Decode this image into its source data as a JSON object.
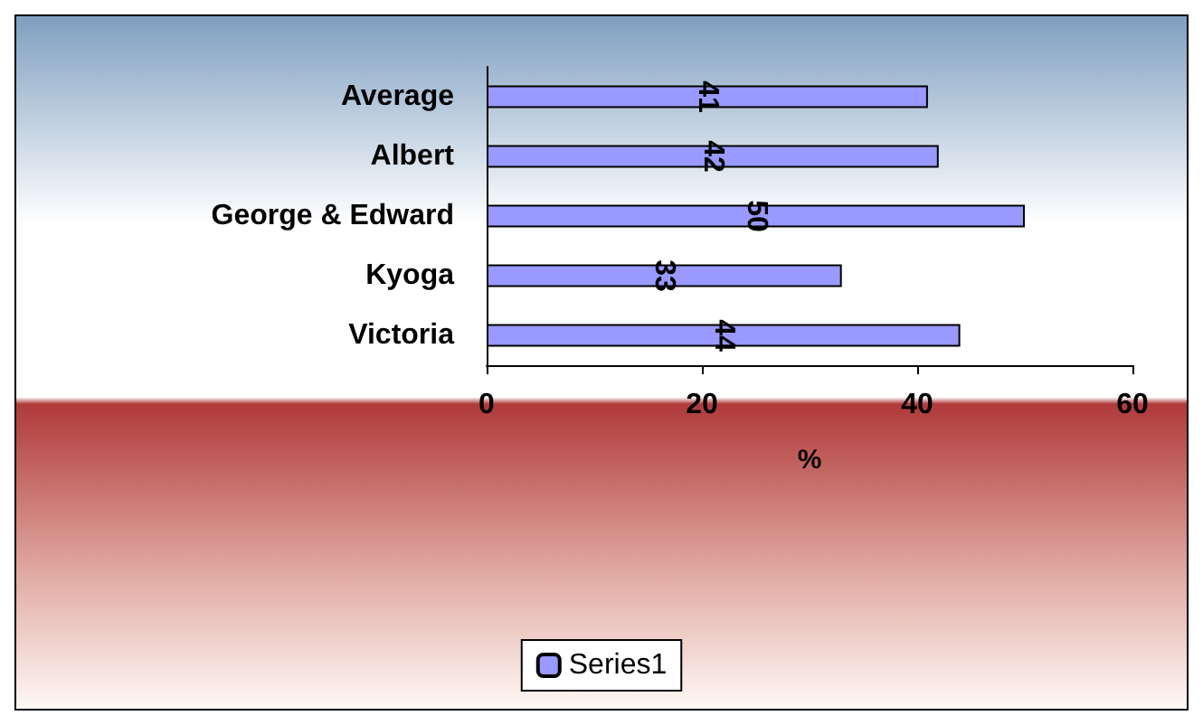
{
  "chart_data": {
    "type": "bar",
    "orientation": "horizontal",
    "xlabel": "%",
    "categories": [
      "Average",
      "Albert",
      "George & Edward",
      "Kyoga",
      "Victoria"
    ],
    "series": [
      {
        "name": "Series1",
        "color": "#9999ff",
        "values": [
          41,
          42,
          50,
          33,
          44
        ]
      }
    ],
    "xlim": [
      0,
      60
    ],
    "xticks": [
      0,
      20,
      40,
      60
    ],
    "data_labels": true,
    "legend": "bottom",
    "grid": false
  }
}
